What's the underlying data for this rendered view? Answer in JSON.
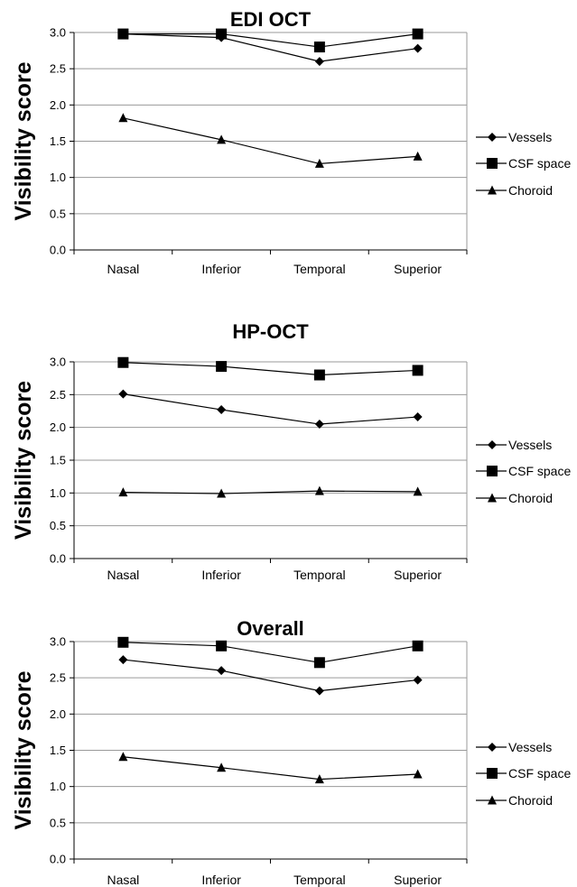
{
  "chart_data": [
    {
      "type": "line",
      "title": "EDI OCT",
      "ylabel": "Visibility score",
      "xlabel": "",
      "categories": [
        "Nasal",
        "Inferior",
        "Temporal",
        "Superior"
      ],
      "ylim": [
        0,
        3
      ],
      "yticks": [
        "0.0",
        "0.5",
        "1.0",
        "1.5",
        "2.0",
        "2.5",
        "3.0"
      ],
      "grid": "horizontal",
      "legend_position": "right",
      "series": [
        {
          "name": "Vessels",
          "marker": "diamond",
          "values": [
            2.98,
            2.93,
            2.6,
            2.78
          ]
        },
        {
          "name": "CSF space",
          "marker": "square",
          "values": [
            2.98,
            2.98,
            2.8,
            2.98
          ]
        },
        {
          "name": "Choroid",
          "marker": "triangle",
          "values": [
            1.82,
            1.52,
            1.19,
            1.29
          ]
        }
      ]
    },
    {
      "type": "line",
      "title": "HP-OCT",
      "ylabel": "Visibility score",
      "xlabel": "",
      "categories": [
        "Nasal",
        "Inferior",
        "Temporal",
        "Superior"
      ],
      "ylim": [
        0,
        3
      ],
      "yticks": [
        "0.0",
        "0.5",
        "1.0",
        "1.5",
        "2.0",
        "2.5",
        "3.0"
      ],
      "grid": "horizontal",
      "legend_position": "right",
      "series": [
        {
          "name": "Vessels",
          "marker": "diamond",
          "values": [
            2.51,
            2.27,
            2.05,
            2.16
          ]
        },
        {
          "name": "CSF space",
          "marker": "square",
          "values": [
            2.99,
            2.93,
            2.8,
            2.87
          ]
        },
        {
          "name": "Choroid",
          "marker": "triangle",
          "values": [
            1.01,
            0.99,
            1.03,
            1.02
          ]
        }
      ]
    },
    {
      "type": "line",
      "title": "Overall",
      "ylabel": "Visibility score",
      "xlabel": "",
      "categories": [
        "Nasal",
        "Inferior",
        "Temporal",
        "Superior"
      ],
      "ylim": [
        0,
        3
      ],
      "yticks": [
        "0.0",
        "0.5",
        "1.0",
        "1.5",
        "2.0",
        "2.5",
        "3.0"
      ],
      "grid": "horizontal",
      "legend_position": "right",
      "series": [
        {
          "name": "Vessels",
          "marker": "diamond",
          "values": [
            2.75,
            2.6,
            2.32,
            2.47
          ]
        },
        {
          "name": "CSF space",
          "marker": "square",
          "values": [
            2.99,
            2.94,
            2.71,
            2.94
          ]
        },
        {
          "name": "Choroid",
          "marker": "triangle",
          "values": [
            1.41,
            1.26,
            1.1,
            1.17
          ]
        }
      ]
    }
  ]
}
